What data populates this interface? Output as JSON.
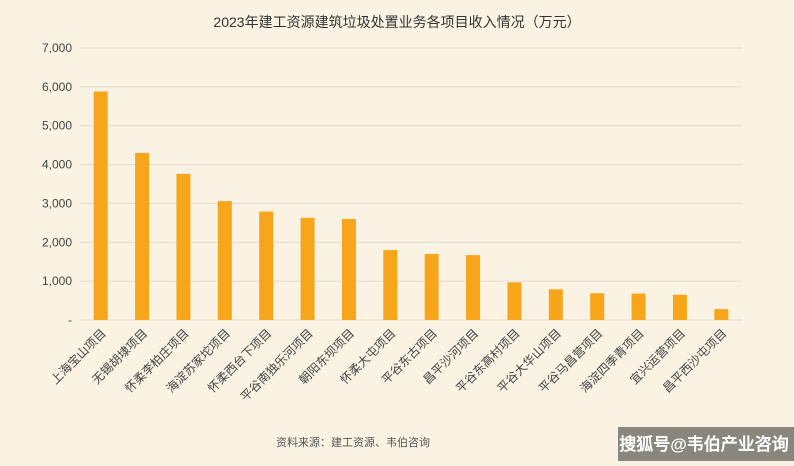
{
  "chart_data": {
    "type": "bar",
    "title": "2023年建工资源建筑垃圾处置业务各项目收入情况（万元）",
    "categories": [
      "上海宝山项目",
      "无锡胡埭项目",
      "怀柔李柏庄项目",
      "海淀苏家坨项目",
      "怀柔西台下项目",
      "平谷南独乐河项目",
      "朝阳东坝项目",
      "怀柔大屯项目",
      "平谷东古项目",
      "昌平沙河项目",
      "平谷东高村项目",
      "平谷大华山项目",
      "平谷马昌营项目",
      "海淀四季青项目",
      "宜兴运营项目",
      "昌平西沙屯项目"
    ],
    "values": [
      5880,
      4300,
      3760,
      3060,
      2790,
      2630,
      2600,
      1800,
      1700,
      1670,
      970,
      790,
      690,
      680,
      650,
      280
    ],
    "ylim": [
      0,
      7000
    ],
    "yticks": [
      "-",
      "1,000",
      "2,000",
      "3,000",
      "4,000",
      "5,000",
      "6,000",
      "7,000"
    ],
    "grid": true,
    "bar_color": "#f7a61c"
  },
  "source_note": "资料来源：建工资源、韦伯咨询",
  "watermark": "搜狐号@韦伯产业咨询"
}
